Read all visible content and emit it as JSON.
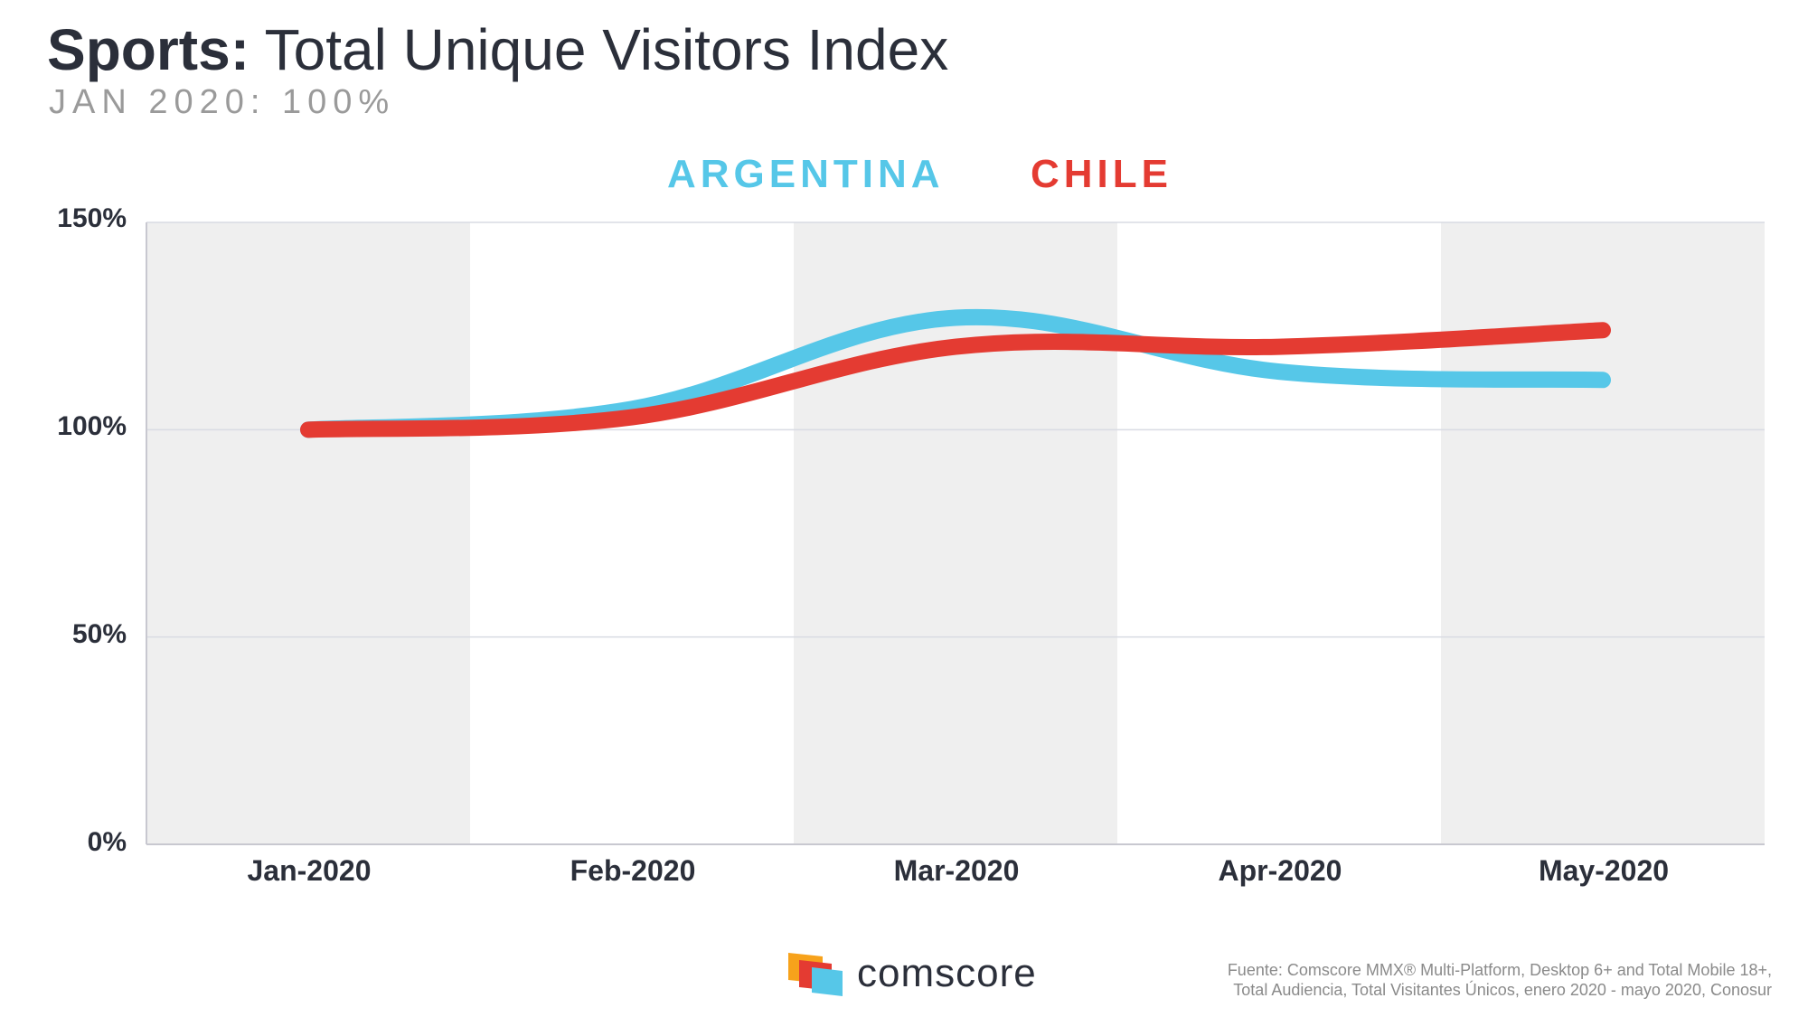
{
  "chart_data": {
    "type": "line",
    "title": "Sports: Total Unique Visitors Index",
    "title_bold": "Sports:",
    "title_rest": "Total Unique Visitors Index",
    "subtitle": "JAN 2020: 100%",
    "categories": [
      "Jan-2020",
      "Feb-2020",
      "Mar-2020",
      "Apr-2020",
      "May-2020"
    ],
    "series": [
      {
        "name": "ARGENTINA",
        "color": "#56c7e8",
        "values": [
          100,
          105,
          127,
          114,
          112
        ]
      },
      {
        "name": "CHILE",
        "color": "#e43b32",
        "values": [
          100,
          103,
          120,
          120,
          124
        ]
      }
    ],
    "yticks": [
      "150%",
      "100%",
      "50%",
      "0%"
    ],
    "ytick_values": [
      150,
      100,
      50,
      0
    ],
    "ylim": [
      0,
      150
    ],
    "xlabel": "",
    "ylabel": "",
    "grid": true,
    "legend_position": "top-center"
  },
  "branding": {
    "logo_text": "comscore",
    "logo_colors": [
      "#f7a21b",
      "#e43b32",
      "#56c7e8"
    ]
  },
  "source": {
    "line1": "Fuente: Comscore MMX® Multi-Platform, Desktop 6+ and Total Mobile 18+,",
    "line2": "Total Audiencia, Total Visitantes Únicos, enero 2020 - mayo 2020, Conosur"
  }
}
